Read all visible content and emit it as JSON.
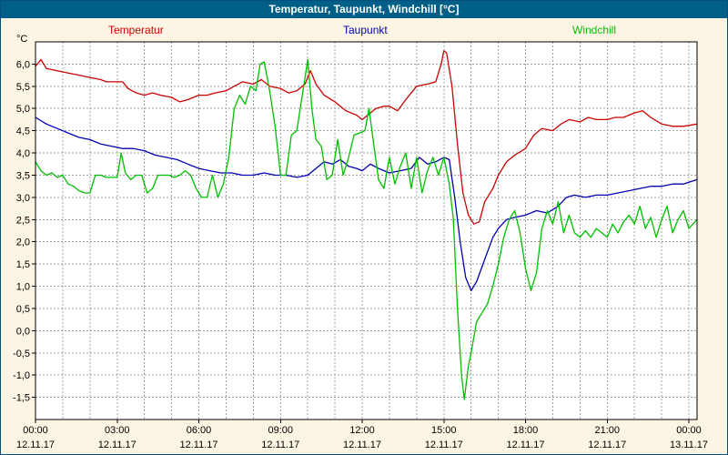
{
  "window": {
    "title": "Temperatur, Taupunkt, Windchill [°C]",
    "titlebar_bg": "#005f87",
    "titlebar_fg": "#ffffff",
    "body_bg": "#fdf5e4",
    "border_color": "#00507e"
  },
  "legend": [
    {
      "label": "Temperatur",
      "color": "#cc0000"
    },
    {
      "label": "Taupunkt",
      "color": "#0000b4"
    },
    {
      "label": "Windchill",
      "color": "#00bf00"
    }
  ],
  "axis": {
    "unit_label": "°C"
  },
  "chart_data": {
    "type": "line",
    "title": "Temperatur, Taupunkt, Windchill [°C]",
    "ylabel": "°C",
    "xlabel": "",
    "grid": true,
    "plot_bg": "#ffffff",
    "grid_color": "#a0a0a0",
    "ylim": [
      -2.0,
      6.5
    ],
    "xlim": [
      0,
      24.3
    ],
    "x_minor_step_hours": 1,
    "yticks": [
      {
        "v": 6.0,
        "label": "6,0"
      },
      {
        "v": 5.5,
        "label": "5,5"
      },
      {
        "v": 5.0,
        "label": "5,0"
      },
      {
        "v": 4.5,
        "label": "4,5"
      },
      {
        "v": 4.0,
        "label": "4,0"
      },
      {
        "v": 3.5,
        "label": "3,5"
      },
      {
        "v": 3.0,
        "label": "3,0"
      },
      {
        "v": 2.5,
        "label": "2,5"
      },
      {
        "v": 2.0,
        "label": "2,0"
      },
      {
        "v": 1.5,
        "label": "1,5"
      },
      {
        "v": 1.0,
        "label": "1,0"
      },
      {
        "v": 0.5,
        "label": "0,5"
      },
      {
        "v": 0.0,
        "label": "0,0"
      },
      {
        "v": -0.5,
        "label": "-0,5"
      },
      {
        "v": -1.0,
        "label": "-1,0"
      },
      {
        "v": -1.5,
        "label": "-1,5"
      }
    ],
    "xticks": [
      {
        "h": 0,
        "time": "00:00",
        "date": "12.11.17"
      },
      {
        "h": 3,
        "time": "03:00",
        "date": "12.11.17"
      },
      {
        "h": 6,
        "time": "06:00",
        "date": "12.11.17"
      },
      {
        "h": 9,
        "time": "09:00",
        "date": "12.11.17"
      },
      {
        "h": 12,
        "time": "12:00",
        "date": "12.11.17"
      },
      {
        "h": 15,
        "time": "15:00",
        "date": "12.11.17"
      },
      {
        "h": 18,
        "time": "18:00",
        "date": "12.11.17"
      },
      {
        "h": 21,
        "time": "21:00",
        "date": "12.11.17"
      },
      {
        "h": 24,
        "time": "00:00",
        "date": "13.11.17"
      }
    ],
    "series": [
      {
        "name": "Temperatur",
        "color": "#cc0000",
        "points": [
          [
            0,
            5.95
          ],
          [
            0.2,
            6.1
          ],
          [
            0.4,
            5.9
          ],
          [
            0.8,
            5.85
          ],
          [
            1.2,
            5.8
          ],
          [
            1.6,
            5.75
          ],
          [
            2.0,
            5.7
          ],
          [
            2.4,
            5.65
          ],
          [
            2.6,
            5.6
          ],
          [
            3.0,
            5.6
          ],
          [
            3.2,
            5.6
          ],
          [
            3.4,
            5.45
          ],
          [
            3.7,
            5.35
          ],
          [
            4.0,
            5.3
          ],
          [
            4.3,
            5.35
          ],
          [
            4.6,
            5.3
          ],
          [
            5.0,
            5.25
          ],
          [
            5.3,
            5.15
          ],
          [
            5.6,
            5.2
          ],
          [
            6.0,
            5.3
          ],
          [
            6.3,
            5.3
          ],
          [
            6.6,
            5.35
          ],
          [
            7.0,
            5.4
          ],
          [
            7.3,
            5.5
          ],
          [
            7.6,
            5.6
          ],
          [
            8.0,
            5.55
          ],
          [
            8.3,
            5.65
          ],
          [
            8.6,
            5.5
          ],
          [
            9.0,
            5.45
          ],
          [
            9.3,
            5.35
          ],
          [
            9.6,
            5.4
          ],
          [
            9.9,
            5.55
          ],
          [
            10.1,
            5.85
          ],
          [
            10.3,
            5.55
          ],
          [
            10.6,
            5.3
          ],
          [
            11.0,
            5.15
          ],
          [
            11.4,
            4.95
          ],
          [
            11.8,
            4.85
          ],
          [
            12.0,
            4.75
          ],
          [
            12.2,
            4.85
          ],
          [
            12.5,
            5.0
          ],
          [
            12.8,
            5.05
          ],
          [
            13.0,
            5.05
          ],
          [
            13.3,
            4.95
          ],
          [
            13.6,
            5.2
          ],
          [
            14.0,
            5.5
          ],
          [
            14.4,
            5.55
          ],
          [
            14.7,
            5.6
          ],
          [
            14.9,
            6.0
          ],
          [
            15.0,
            6.3
          ],
          [
            15.1,
            6.25
          ],
          [
            15.3,
            5.5
          ],
          [
            15.5,
            4.2
          ],
          [
            15.7,
            3.1
          ],
          [
            15.9,
            2.6
          ],
          [
            16.1,
            2.4
          ],
          [
            16.3,
            2.45
          ],
          [
            16.5,
            2.9
          ],
          [
            16.8,
            3.2
          ],
          [
            17.0,
            3.5
          ],
          [
            17.3,
            3.8
          ],
          [
            17.6,
            3.95
          ],
          [
            18.0,
            4.1
          ],
          [
            18.3,
            4.4
          ],
          [
            18.6,
            4.55
          ],
          [
            19.0,
            4.5
          ],
          [
            19.3,
            4.65
          ],
          [
            19.6,
            4.75
          ],
          [
            20.0,
            4.7
          ],
          [
            20.3,
            4.8
          ],
          [
            20.6,
            4.75
          ],
          [
            21.0,
            4.75
          ],
          [
            21.3,
            4.8
          ],
          [
            21.6,
            4.8
          ],
          [
            22.0,
            4.9
          ],
          [
            22.3,
            4.95
          ],
          [
            22.6,
            4.8
          ],
          [
            23.0,
            4.65
          ],
          [
            23.4,
            4.6
          ],
          [
            23.8,
            4.6
          ],
          [
            24.3,
            4.65
          ]
        ]
      },
      {
        "name": "Taupunkt",
        "color": "#0000b4",
        "points": [
          [
            0,
            4.8
          ],
          [
            0.4,
            4.65
          ],
          [
            0.8,
            4.55
          ],
          [
            1.2,
            4.45
          ],
          [
            1.6,
            4.35
          ],
          [
            2.0,
            4.3
          ],
          [
            2.4,
            4.2
          ],
          [
            2.8,
            4.15
          ],
          [
            3.2,
            4.1
          ],
          [
            3.6,
            4.1
          ],
          [
            4.0,
            4.05
          ],
          [
            4.4,
            3.95
          ],
          [
            4.8,
            3.9
          ],
          [
            5.2,
            3.85
          ],
          [
            5.6,
            3.75
          ],
          [
            6.0,
            3.65
          ],
          [
            6.4,
            3.6
          ],
          [
            6.8,
            3.55
          ],
          [
            7.2,
            3.55
          ],
          [
            7.6,
            3.5
          ],
          [
            8.0,
            3.5
          ],
          [
            8.4,
            3.55
          ],
          [
            8.8,
            3.5
          ],
          [
            9.2,
            3.5
          ],
          [
            9.6,
            3.45
          ],
          [
            10.0,
            3.5
          ],
          [
            10.3,
            3.65
          ],
          [
            10.6,
            3.8
          ],
          [
            10.9,
            3.75
          ],
          [
            11.2,
            3.85
          ],
          [
            11.5,
            3.7
          ],
          [
            11.8,
            3.65
          ],
          [
            12.0,
            3.6
          ],
          [
            12.3,
            3.75
          ],
          [
            12.6,
            3.65
          ],
          [
            13.0,
            3.55
          ],
          [
            13.4,
            3.6
          ],
          [
            13.8,
            3.65
          ],
          [
            14.1,
            3.9
          ],
          [
            14.4,
            3.75
          ],
          [
            14.7,
            3.8
          ],
          [
            15.0,
            3.9
          ],
          [
            15.2,
            3.85
          ],
          [
            15.4,
            3.0
          ],
          [
            15.6,
            2.0
          ],
          [
            15.8,
            1.2
          ],
          [
            16.0,
            0.9
          ],
          [
            16.2,
            1.1
          ],
          [
            16.5,
            1.6
          ],
          [
            16.8,
            2.1
          ],
          [
            17.0,
            2.3
          ],
          [
            17.3,
            2.5
          ],
          [
            17.6,
            2.55
          ],
          [
            18.0,
            2.6
          ],
          [
            18.4,
            2.7
          ],
          [
            18.8,
            2.65
          ],
          [
            19.2,
            2.8
          ],
          [
            19.5,
            3.0
          ],
          [
            19.8,
            3.05
          ],
          [
            20.2,
            3.0
          ],
          [
            20.6,
            3.05
          ],
          [
            21.0,
            3.05
          ],
          [
            21.4,
            3.1
          ],
          [
            21.8,
            3.15
          ],
          [
            22.2,
            3.2
          ],
          [
            22.6,
            3.25
          ],
          [
            23.0,
            3.25
          ],
          [
            23.4,
            3.3
          ],
          [
            23.8,
            3.3
          ],
          [
            24.3,
            3.4
          ]
        ]
      },
      {
        "name": "Windchill",
        "color": "#00bf00",
        "points": [
          [
            0,
            3.8
          ],
          [
            0.2,
            3.6
          ],
          [
            0.4,
            3.5
          ],
          [
            0.6,
            3.55
          ],
          [
            0.8,
            3.45
          ],
          [
            1.0,
            3.5
          ],
          [
            1.2,
            3.3
          ],
          [
            1.4,
            3.25
          ],
          [
            1.6,
            3.15
          ],
          [
            1.8,
            3.1
          ],
          [
            2.0,
            3.1
          ],
          [
            2.2,
            3.5
          ],
          [
            2.4,
            3.5
          ],
          [
            2.6,
            3.45
          ],
          [
            2.8,
            3.45
          ],
          [
            3.0,
            3.45
          ],
          [
            3.15,
            4.0
          ],
          [
            3.3,
            3.55
          ],
          [
            3.5,
            3.4
          ],
          [
            3.7,
            3.5
          ],
          [
            3.9,
            3.5
          ],
          [
            4.1,
            3.1
          ],
          [
            4.3,
            3.2
          ],
          [
            4.5,
            3.5
          ],
          [
            4.7,
            3.5
          ],
          [
            4.9,
            3.5
          ],
          [
            5.1,
            3.45
          ],
          [
            5.3,
            3.5
          ],
          [
            5.5,
            3.6
          ],
          [
            5.7,
            3.5
          ],
          [
            5.9,
            3.2
          ],
          [
            6.1,
            3.0
          ],
          [
            6.3,
            3.0
          ],
          [
            6.5,
            3.5
          ],
          [
            6.7,
            3.0
          ],
          [
            6.9,
            3.3
          ],
          [
            7.1,
            3.9
          ],
          [
            7.3,
            5.0
          ],
          [
            7.5,
            5.3
          ],
          [
            7.7,
            5.1
          ],
          [
            7.9,
            5.5
          ],
          [
            8.1,
            5.4
          ],
          [
            8.25,
            6.0
          ],
          [
            8.4,
            6.05
          ],
          [
            8.6,
            5.4
          ],
          [
            8.8,
            4.6
          ],
          [
            9.0,
            3.5
          ],
          [
            9.2,
            3.5
          ],
          [
            9.4,
            4.4
          ],
          [
            9.6,
            4.5
          ],
          [
            9.8,
            5.3
          ],
          [
            10.0,
            6.1
          ],
          [
            10.15,
            5.0
          ],
          [
            10.3,
            4.3
          ],
          [
            10.5,
            4.15
          ],
          [
            10.7,
            3.4
          ],
          [
            10.9,
            3.5
          ],
          [
            11.1,
            4.3
          ],
          [
            11.3,
            3.5
          ],
          [
            11.5,
            3.9
          ],
          [
            11.7,
            4.4
          ],
          [
            11.9,
            4.45
          ],
          [
            12.1,
            4.5
          ],
          [
            12.25,
            5.0
          ],
          [
            12.4,
            4.3
          ],
          [
            12.6,
            3.4
          ],
          [
            12.8,
            3.2
          ],
          [
            13.0,
            3.9
          ],
          [
            13.2,
            3.3
          ],
          [
            13.4,
            3.7
          ],
          [
            13.6,
            4.0
          ],
          [
            13.8,
            3.2
          ],
          [
            14.0,
            3.9
          ],
          [
            14.2,
            3.1
          ],
          [
            14.4,
            3.6
          ],
          [
            14.6,
            3.9
          ],
          [
            14.8,
            3.5
          ],
          [
            15.0,
            3.9
          ],
          [
            15.2,
            3.3
          ],
          [
            15.35,
            2.5
          ],
          [
            15.5,
            0.5
          ],
          [
            15.65,
            -1.0
          ],
          [
            15.75,
            -1.55
          ],
          [
            15.9,
            -0.8
          ],
          [
            16.0,
            -0.5
          ],
          [
            16.2,
            0.2
          ],
          [
            16.4,
            0.4
          ],
          [
            16.6,
            0.6
          ],
          [
            16.8,
            1.0
          ],
          [
            17.0,
            1.5
          ],
          [
            17.2,
            2.1
          ],
          [
            17.4,
            2.5
          ],
          [
            17.6,
            2.7
          ],
          [
            17.8,
            2.2
          ],
          [
            18.0,
            1.4
          ],
          [
            18.2,
            0.9
          ],
          [
            18.4,
            1.3
          ],
          [
            18.6,
            2.3
          ],
          [
            18.8,
            2.7
          ],
          [
            19.0,
            2.4
          ],
          [
            19.2,
            2.9
          ],
          [
            19.4,
            2.2
          ],
          [
            19.6,
            2.6
          ],
          [
            19.8,
            2.2
          ],
          [
            20.0,
            2.1
          ],
          [
            20.2,
            2.25
          ],
          [
            20.4,
            2.1
          ],
          [
            20.6,
            2.3
          ],
          [
            20.8,
            2.2
          ],
          [
            21.0,
            2.1
          ],
          [
            21.2,
            2.4
          ],
          [
            21.4,
            2.2
          ],
          [
            21.6,
            2.45
          ],
          [
            21.8,
            2.6
          ],
          [
            22.0,
            2.4
          ],
          [
            22.2,
            2.8
          ],
          [
            22.4,
            2.3
          ],
          [
            22.6,
            2.55
          ],
          [
            22.8,
            2.1
          ],
          [
            23.0,
            2.5
          ],
          [
            23.2,
            2.8
          ],
          [
            23.4,
            2.2
          ],
          [
            23.6,
            2.5
          ],
          [
            23.8,
            2.7
          ],
          [
            24.0,
            2.3
          ],
          [
            24.3,
            2.5
          ]
        ]
      }
    ]
  }
}
